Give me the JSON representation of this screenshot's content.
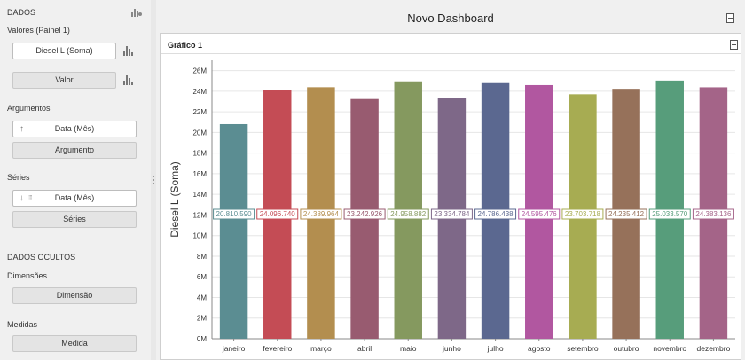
{
  "left_panel": {
    "data_header": "DADOS",
    "values_header": "Valores (Painel 1)",
    "values": [
      "Diesel L (Soma)",
      "Valor"
    ],
    "arguments_header": "Argumentos",
    "arguments": [
      "Data (Mês)",
      "Argumento"
    ],
    "series_header": "Séries",
    "series": [
      "Data (Mês)",
      "Séries"
    ],
    "hidden_header": "DADOS OCULTOS",
    "dimensions_header": "Dimensões",
    "dimension_placeholder": "Dimensão",
    "measures_header": "Medidas",
    "measure_placeholder": "Medida"
  },
  "dashboard": {
    "title": "Novo Dashboard",
    "panel_title": "Gráfico 1"
  },
  "chart_data": {
    "type": "bar",
    "ylabel": "Diesel L (Soma)",
    "ylim": [
      0,
      27000000
    ],
    "yticks": [
      "0M",
      "2M",
      "4M",
      "6M",
      "8M",
      "10M",
      "12M",
      "14M",
      "16M",
      "18M",
      "20M",
      "22M",
      "24M",
      "26M"
    ],
    "categories": [
      "janeiro",
      "fevereiro",
      "março",
      "abril",
      "maio",
      "junho",
      "julho",
      "agosto",
      "setembro",
      "outubro",
      "novembro",
      "dezembro"
    ],
    "values": [
      20810590,
      24096740,
      24389964,
      23242926,
      24958882,
      23334784,
      24786438,
      24595476,
      23703718,
      24235412,
      25033570,
      24383136
    ],
    "value_labels": [
      "20.810.590",
      "24.096.740",
      "24.389.964",
      "23.242.926",
      "24.958.882",
      "23.334.784",
      "24.786.438",
      "24.595.476",
      "23.703.718",
      "24.235.412",
      "25.033.570",
      "24.383.136"
    ],
    "colors": [
      "#5b8d92",
      "#c44c55",
      "#b38e4f",
      "#985b70",
      "#85995f",
      "#7e6888",
      "#5b6890",
      "#b157a0",
      "#a7ac52",
      "#96715a",
      "#579d7b",
      "#a46488"
    ],
    "grid": true,
    "legend": "none"
  }
}
